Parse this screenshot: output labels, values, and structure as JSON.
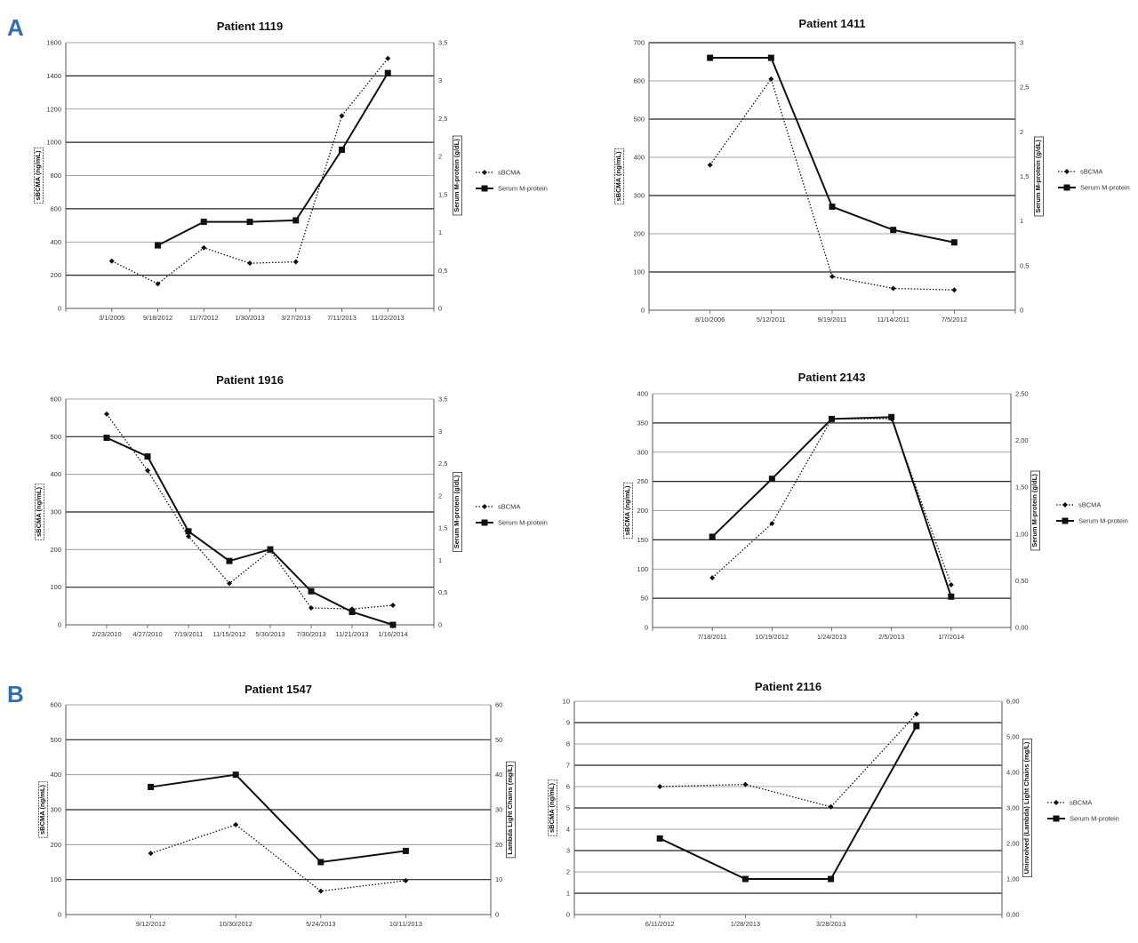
{
  "sections": [
    {
      "label": "A"
    },
    {
      "label": "B"
    }
  ],
  "chart_data": [
    {
      "type": "line",
      "title": "Patient 1119",
      "categories": [
        "3/1/2005",
        "9/18/2012",
        "11/7/2012",
        "1/30/2013",
        "3/27/2013",
        "7/11/2013",
        "11/22/2013"
      ],
      "ylabel": "sBCMA (ng/mL)",
      "ylabel2": "Serum M-protein (g/dL)",
      "ylim": [
        0,
        1600
      ],
      "yticks": [
        "0",
        "200",
        "400",
        "600",
        "800",
        "1000",
        "1200",
        "1400",
        "1600"
      ],
      "y2lim": [
        0,
        3.5
      ],
      "y2ticks": [
        "0",
        "0,5",
        "1",
        "1,5",
        "2",
        "2,5",
        "3",
        "3,5"
      ],
      "series": [
        {
          "name": "sBCMA",
          "axis": "left",
          "style": "dotted-diamond",
          "values": [
            285,
            148,
            365,
            272,
            280,
            1160,
            1505
          ]
        },
        {
          "name": "Serum M-protein",
          "axis": "right",
          "style": "solid-square",
          "values": [
            null,
            0.83,
            1.14,
            1.14,
            1.16,
            2.09,
            3.1
          ]
        }
      ]
    },
    {
      "type": "line",
      "title": "Patient 1411",
      "categories": [
        "8/10/2006",
        "5/12/2011",
        "9/19/2011",
        "11/14/2011",
        "7/5/2012"
      ],
      "ylabel": "sBCMA (ng/mL)",
      "ylabel2": "Serum M-protein (g/dL)",
      "ylim": [
        0,
        700
      ],
      "yticks": [
        "0",
        "100",
        "200",
        "300",
        "400",
        "500",
        "600",
        "700"
      ],
      "y2lim": [
        0,
        3
      ],
      "y2ticks": [
        "0",
        "0,5",
        "1",
        "1,5",
        "2",
        "2,5",
        "3"
      ],
      "series": [
        {
          "name": "sBCMA",
          "axis": "left",
          "style": "dotted-diamond",
          "values": [
            380,
            605,
            88,
            57,
            53
          ]
        },
        {
          "name": "Serum M-protein",
          "axis": "right",
          "style": "solid-square",
          "values": [
            2.83,
            2.83,
            1.16,
            0.9,
            0.76
          ]
        }
      ]
    },
    {
      "type": "line",
      "title": "Patient 1916",
      "categories": [
        "2/23/2010",
        "4/27/2010",
        "7/19/2011",
        "11/15/2012",
        "5/30/2013",
        "7/30/2013",
        "11/21/2013",
        "1/16/2014"
      ],
      "ylabel": "sBCMA (ng/mL)",
      "ylabel2": "Serum M-protein (g/dL)",
      "ylim": [
        0,
        600
      ],
      "yticks": [
        "0",
        "100",
        "200",
        "300",
        "400",
        "500",
        "600"
      ],
      "y2lim": [
        0,
        3.5
      ],
      "y2ticks": [
        "0",
        "0,5",
        "1",
        "1,5",
        "2",
        "2,5",
        "3",
        "3,5"
      ],
      "series": [
        {
          "name": "sBCMA",
          "axis": "left",
          "style": "dotted-diamond",
          "values": [
            560,
            410,
            235,
            110,
            197,
            45,
            42,
            52
          ]
        },
        {
          "name": "Serum M-protein",
          "axis": "right",
          "style": "solid-square",
          "values": [
            2.9,
            2.61,
            1.45,
            0.99,
            1.17,
            0.52,
            0.2,
            0.0
          ]
        }
      ]
    },
    {
      "type": "line",
      "title": "Patient 2143",
      "categories": [
        "7/18/2011",
        "10/19/2012",
        "1/24/2013",
        "2/5/2013",
        "1/7/2014"
      ],
      "ylabel": "sBCMA (ng/mL)",
      "ylabel2": "Serum M-protein (g/dL)",
      "ylim": [
        0,
        400
      ],
      "yticks": [
        "0",
        "50",
        "100",
        "150",
        "200",
        "250",
        "300",
        "350",
        "400"
      ],
      "y2lim": [
        0,
        2.5
      ],
      "y2ticks": [
        "0,00",
        "0,50",
        "1,00",
        "1,50",
        "2,00",
        "2,50"
      ],
      "series": [
        {
          "name": "sBCMA",
          "axis": "left",
          "style": "dotted-diamond",
          "values": [
            85,
            178,
            357,
            357,
            73
          ]
        },
        {
          "name": "Serum M-protein",
          "axis": "right",
          "style": "solid-square",
          "values": [
            0.97,
            1.59,
            2.23,
            2.25,
            0.33
          ]
        }
      ]
    },
    {
      "type": "line",
      "title": "Patient 1547",
      "categories": [
        "9/12/2012",
        "10/30/2012",
        "5/24/2013",
        "10/11/2013"
      ],
      "ylabel": "sBCMA (ng/mL)",
      "ylabel2": "Lambda Light Chains (mg/L)",
      "ylim": [
        0,
        600
      ],
      "yticks": [
        "0",
        "100",
        "200",
        "300",
        "400",
        "500",
        "600"
      ],
      "y2lim": [
        0,
        60
      ],
      "y2ticks": [
        "0",
        "10",
        "20",
        "30",
        "40",
        "50",
        "60"
      ],
      "legend": false,
      "series": [
        {
          "name": "sBCMA",
          "axis": "left",
          "style": "dotted-diamond",
          "values": [
            175,
            257,
            67,
            97
          ]
        },
        {
          "name": "Lambda Light Chains",
          "axis": "right",
          "style": "solid-square",
          "values": [
            36.5,
            40,
            15,
            18.2
          ]
        }
      ]
    },
    {
      "type": "line",
      "title": "Patient 2116",
      "categories": [
        "6/11/2012",
        "1/28/2013",
        "3/28/2013",
        ""
      ],
      "ylabel": "sBCMA (ng/mL)",
      "ylabel2": "Uninvolved (Lambda) Light Chains (mg/L)",
      "ylim": [
        0,
        10
      ],
      "yticks": [
        "0",
        "1",
        "2",
        "3",
        "4",
        "5",
        "6",
        "7",
        "8",
        "9",
        "10"
      ],
      "y2lim": [
        0,
        6
      ],
      "y2ticks": [
        "0,00",
        "1,00",
        "2,00",
        "3,00",
        "4,00",
        "5,00",
        "6,00"
      ],
      "series": [
        {
          "name": "sBCMA",
          "axis": "left",
          "style": "dotted-diamond",
          "values": [
            6.0,
            6.1,
            5.05,
            9.4
          ]
        },
        {
          "name": "Serum M-protein",
          "axis": "right",
          "style": "solid-square",
          "values": [
            2.14,
            1.0,
            1.0,
            5.3
          ]
        }
      ]
    }
  ]
}
